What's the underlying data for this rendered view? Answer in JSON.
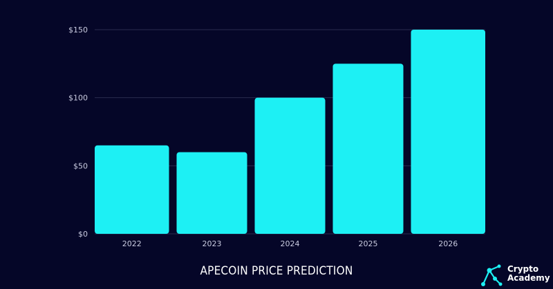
{
  "chart_data": {
    "type": "bar",
    "title": "APECOIN PRICE PREDICTION",
    "categories": [
      "2022",
      "2023",
      "2024",
      "2025",
      "2026"
    ],
    "values": [
      65,
      60,
      100,
      125,
      150
    ],
    "ylim": [
      0,
      150
    ],
    "yticks": [
      "$0",
      "$50",
      "$100",
      "$150"
    ],
    "ytick_values": [
      0,
      50,
      100,
      150
    ],
    "grid": true,
    "colors": {
      "background": "#050628",
      "bar": "#1df0f4",
      "grid": "#2a2c4f"
    }
  },
  "logo": {
    "line1": "Crypto",
    "line2": "Academy",
    "icon": "crypto-academy-network-icon"
  }
}
